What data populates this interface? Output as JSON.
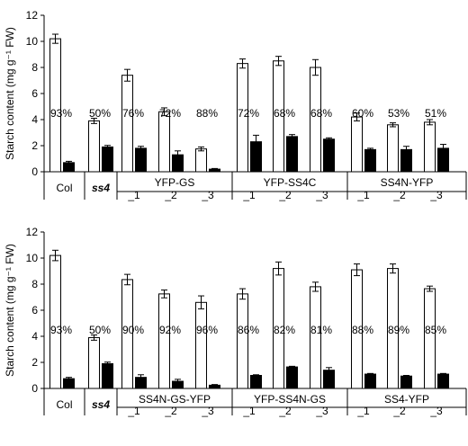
{
  "chart_data": [
    {
      "type": "bar",
      "ylabel": "Starch content (mg g⁻¹ FW)",
      "ylim": [
        0,
        12
      ],
      "yticks": [
        "0",
        "2",
        "4",
        "6",
        "8",
        "10",
        "12"
      ],
      "categories": [
        "Col",
        "ss4",
        "YFP-GS_1",
        "YFP-GS_2",
        "YFP-GS_3",
        "YFP-SS4C_1",
        "YFP-SS4C_2",
        "YFP-SS4C_3",
        "SS4N-YFP_1",
        "SS4N-YFP_2",
        "SS4N-YFP_3"
      ],
      "series": [
        {
          "color": "#ffffff",
          "values": [
            10.2,
            3.9,
            7.4,
            4.6,
            1.75,
            8.3,
            8.5,
            8.0,
            4.2,
            3.6,
            3.8
          ],
          "errors": [
            0.35,
            0.2,
            0.45,
            0.3,
            0.15,
            0.35,
            0.35,
            0.6,
            0.3,
            0.15,
            0.2
          ]
        },
        {
          "color": "#000000",
          "values": [
            0.7,
            1.9,
            1.8,
            1.3,
            0.2,
            2.3,
            2.7,
            2.5,
            1.7,
            1.7,
            1.8
          ],
          "errors": [
            0.1,
            0.12,
            0.15,
            0.3,
            0.05,
            0.5,
            0.15,
            0.1,
            0.1,
            0.25,
            0.3
          ]
        }
      ],
      "percent_labels": [
        "93%",
        "50%",
        "76%",
        "72%",
        "88%",
        "72%",
        "68%",
        "68%",
        "60%",
        "53%",
        "51%"
      ],
      "sample_labels": [
        "Col",
        "ss4"
      ],
      "groups": [
        {
          "name": "YFP-GS",
          "members": [
            "_1",
            "_2",
            "_3"
          ]
        },
        {
          "name": "YFP-SS4C",
          "members": [
            "_1",
            "_2",
            "_3"
          ]
        },
        {
          "name": "SS4N-YFP",
          "members": [
            "_1",
            "_2",
            "_3"
          ]
        }
      ]
    },
    {
      "type": "bar",
      "ylabel": "Starch content (mg g⁻¹ FW)",
      "ylim": [
        0,
        12
      ],
      "yticks": [
        "0",
        "2",
        "4",
        "6",
        "8",
        "10",
        "12"
      ],
      "categories": [
        "Col",
        "ss4",
        "SS4N-GS-YFP_1",
        "SS4N-GS-YFP_2",
        "SS4N-GS-YFP_3",
        "YFP-SS4N-GS_1",
        "YFP-SS4N-GS_2",
        "YFP-SS4N-GS_3",
        "SS4-YFP_1",
        "SS4-YFP_2",
        "SS4-YFP_3"
      ],
      "series": [
        {
          "color": "#ffffff",
          "values": [
            10.2,
            3.9,
            8.35,
            7.25,
            6.6,
            7.25,
            9.2,
            7.8,
            9.1,
            9.2,
            7.65
          ],
          "errors": [
            0.4,
            0.2,
            0.4,
            0.3,
            0.5,
            0.4,
            0.5,
            0.35,
            0.45,
            0.35,
            0.2
          ]
        },
        {
          "color": "#000000",
          "values": [
            0.75,
            1.9,
            0.85,
            0.55,
            0.25,
            1.0,
            1.65,
            1.4,
            1.1,
            0.95,
            1.1
          ],
          "errors": [
            0.1,
            0.12,
            0.2,
            0.15,
            0.05,
            0.05,
            0.05,
            0.2,
            0.05,
            0.05,
            0.05
          ]
        }
      ],
      "percent_labels": [
        "93%",
        "50%",
        "90%",
        "92%",
        "96%",
        "86%",
        "82%",
        "81%",
        "88%",
        "89%",
        "85%"
      ],
      "sample_labels": [
        "Col",
        "ss4"
      ],
      "groups": [
        {
          "name": "SS4N-GS-YFP",
          "members": [
            "_1",
            "_2",
            "_3"
          ]
        },
        {
          "name": "YFP-SS4N-GS",
          "members": [
            "_1",
            "_2",
            "_3"
          ]
        },
        {
          "name": "SS4-YFP",
          "members": [
            "_1",
            "_2",
            "_3"
          ]
        }
      ]
    }
  ]
}
